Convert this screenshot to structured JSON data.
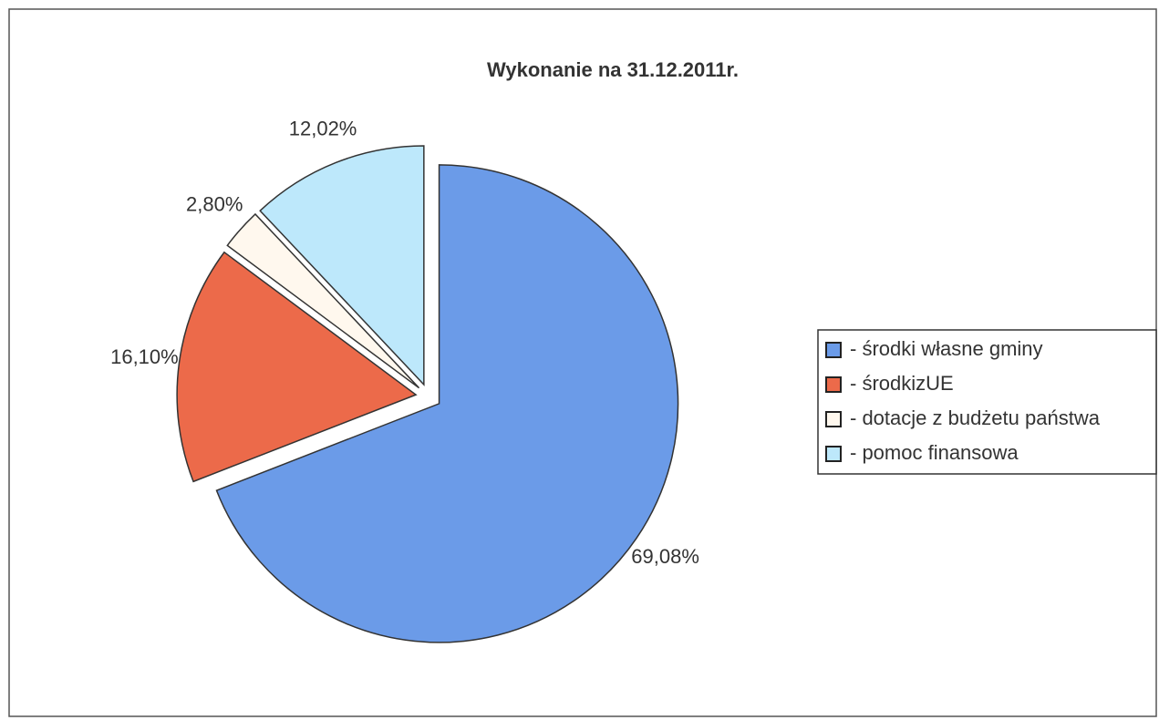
{
  "chart_data": {
    "type": "pie",
    "title": "Wykonanie na 31.12.2011r.",
    "categories": [
      "- środki własne gminy",
      "- środkizUE",
      "- dotacje z budżetu państwa",
      "- pomoc finansowa"
    ],
    "values": [
      69.08,
      16.1,
      2.8,
      12.02
    ],
    "value_labels": [
      "69,08%",
      "16,10%",
      "2,80%",
      "12,02%"
    ],
    "colors": [
      "#6b9be8",
      "#ec6a4a",
      "#fff8ee",
      "#bde8fb"
    ],
    "legend": "right"
  }
}
